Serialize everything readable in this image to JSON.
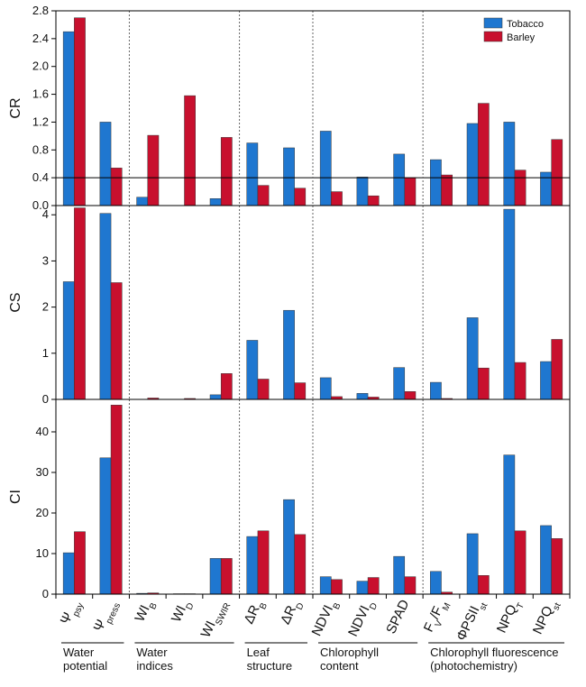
{
  "chart_data": [
    {
      "type": "bar",
      "ylabel": "CR",
      "categories": [
        [
          "Ψ",
          "psy"
        ],
        [
          "Ψ",
          "press"
        ],
        [
          "WI",
          "B"
        ],
        [
          "WI",
          "D"
        ],
        [
          "WI",
          "SWIR"
        ],
        [
          "ΔR",
          "B"
        ],
        [
          "ΔR",
          "D"
        ],
        [
          "NDVI",
          "B"
        ],
        [
          "NDVI",
          "D"
        ],
        [
          "SPAD"
        ],
        [
          "F",
          "V",
          "/F",
          "M"
        ],
        [
          "ΦPSII",
          "st"
        ],
        [
          "NPQ",
          "T"
        ],
        [
          "NPQ",
          "st"
        ]
      ],
      "groups": [
        {
          "label": [
            "Water",
            "potential"
          ],
          "size": 2
        },
        {
          "label": [
            "Water",
            "indices"
          ],
          "size": 3
        },
        {
          "label": [
            "Leaf",
            "structure"
          ],
          "size": 2
        },
        {
          "label": [
            "Chlorophyll",
            "content"
          ],
          "size": 3
        },
        {
          "label": [
            "Chlorophyll fluorescence",
            "(photochemistry)"
          ],
          "size": 4
        }
      ],
      "series": [
        {
          "name": "Tobacco",
          "color": "#1f77d0",
          "values": [
            2.5,
            1.2,
            0.12,
            0,
            0.1,
            0.9,
            0.83,
            1.07,
            0.41,
            0.74,
            0.66,
            1.18,
            1.2,
            0.48
          ]
        },
        {
          "name": "Barley",
          "color": "#c8102e",
          "values": [
            2.7,
            0.54,
            1.01,
            1.58,
            0.98,
            0.29,
            0.25,
            0.2,
            0.14,
            0.4,
            0.44,
            1.47,
            0.51,
            0.95
          ]
        }
      ],
      "ylim": [
        0,
        2.8
      ],
      "yticks": [
        {
          "value": 0,
          "label": "0.0"
        },
        0.4,
        0.8,
        1.2,
        1.6,
        {
          "value": 2,
          "label": "2.0"
        },
        2.4,
        2.8
      ],
      "hline": 0.4,
      "legend": "top-right"
    },
    {
      "type": "bar",
      "ylabel": "CS",
      "series": [
        {
          "color": "#1f77d0",
          "values": [
            2.55,
            4.03,
            0,
            0,
            0.1,
            1.28,
            1.93,
            0.47,
            0.13,
            0.69,
            0.37,
            1.77,
            4.12,
            0.82
          ]
        },
        {
          "color": "#c8102e",
          "values": [
            4.15,
            2.53,
            0.03,
            0.02,
            0.56,
            0.44,
            0.36,
            0.06,
            0.05,
            0.17,
            0.02,
            0.68,
            0.8,
            1.3
          ]
        }
      ],
      "ylim": [
        0,
        4.2
      ],
      "yticks": [
        0,
        1,
        2,
        3,
        4
      ]
    },
    {
      "type": "bar",
      "ylabel": "CI",
      "series": [
        {
          "color": "#1f77d0",
          "values": [
            10.2,
            33.6,
            0.2,
            0.1,
            8.8,
            14.2,
            23.3,
            4.3,
            3.2,
            9.3,
            5.6,
            14.9,
            34.3,
            16.9
          ]
        },
        {
          "color": "#c8102e",
          "values": [
            15.4,
            46.6,
            0.3,
            0.1,
            8.8,
            15.6,
            14.7,
            3.6,
            4.1,
            4.3,
            0.5,
            4.6,
            15.6,
            13.7
          ]
        }
      ],
      "ylim": [
        0,
        48
      ],
      "yticks": [
        0,
        10,
        20,
        30,
        40
      ]
    }
  ]
}
